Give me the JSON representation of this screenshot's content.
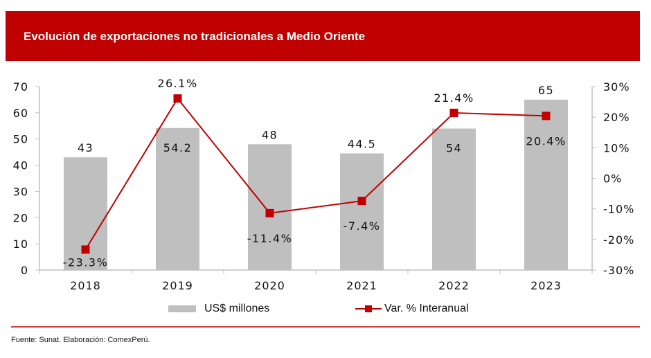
{
  "header": {
    "title": "Evolución de exportaciones no tradicionales a Medio Oriente"
  },
  "colors": {
    "header_bg": "#c00000",
    "bar": "#bfbfbf",
    "line": "#c00000",
    "axis": "#bfbfbf"
  },
  "chart_data": {
    "type": "bar",
    "title": "Evolución de exportaciones no tradicionales a Medio Oriente",
    "xlabel": "",
    "ylabel": "",
    "categories": [
      "2018",
      "2019",
      "2020",
      "2021",
      "2022",
      "2023"
    ],
    "series": [
      {
        "name": "US$ millones",
        "type": "bar",
        "axis": "left",
        "values": [
          43,
          54.2,
          48,
          44.5,
          54,
          65
        ],
        "labels": [
          "43",
          "54.2",
          "48",
          "44.5",
          "54",
          "65"
        ]
      },
      {
        "name": "Var. % Interanual",
        "type": "line",
        "axis": "right",
        "values": [
          -23.3,
          26.1,
          -11.4,
          -7.4,
          21.4,
          20.4
        ],
        "labels": [
          "-23.3%",
          "26.1%",
          "-11.4%",
          "-7.4%",
          "21.4%",
          "20.4%"
        ]
      }
    ],
    "ylim": [
      0,
      70
    ],
    "yticks": [
      "0",
      "10",
      "20",
      "30",
      "40",
      "50",
      "60",
      "70"
    ],
    "y2lim": [
      -30,
      30
    ],
    "y2ticks": [
      "-30%",
      "-20%",
      "-10%",
      "0%",
      "10%",
      "20%",
      "30%"
    ],
    "grid": false,
    "legend_position": "bottom"
  },
  "legend": {
    "bar_label": "US$ millones",
    "line_label": "Var. % Interanual"
  },
  "footer": {
    "source": "Fuente: Sunat. Elaboración: ComexPerú."
  }
}
